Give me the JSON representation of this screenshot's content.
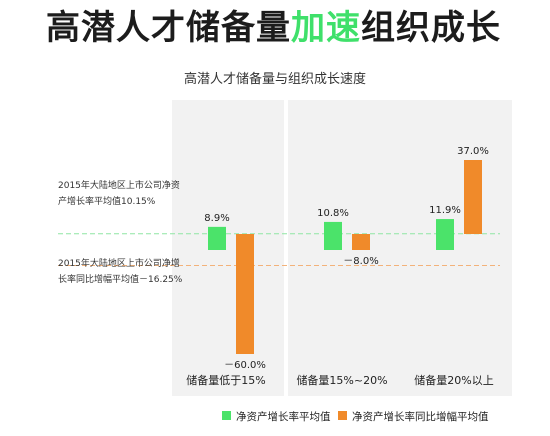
{
  "headline": {
    "part1": "高潜人才储备量",
    "part2": "加速",
    "part3": "组织成长"
  },
  "annotations": {
    "roe": "2015年大陆地区上市公司净资产增长率平均值10.15%",
    "growth": "2015年大陆地区上市公司净增长率同比增幅平均值－16.25%"
  },
  "colors": {
    "green": "#4be36a",
    "orange": "#f08a2a",
    "panel": "#f2f2f2",
    "accent": "#3fe06a"
  },
  "chart_data": {
    "type": "bar",
    "title": "高潜人才储备量与组织成长速度",
    "categories": [
      "储备量低于15%",
      "储备量15%~20%",
      "储备量20%以上"
    ],
    "series": [
      {
        "name": "净资产增长率平均值",
        "values": [
          8.9,
          10.8,
          11.9
        ],
        "labels": [
          "8.9%",
          "10.8%",
          "11.9%"
        ],
        "color": "#4be36a"
      },
      {
        "name": "净资产增长率同比增幅平均值",
        "values": [
          -60.0,
          -8.0,
          37.0
        ],
        "labels": [
          "－60.0%",
          "－8.0%",
          "37.0%"
        ],
        "color": "#f08a2a"
      }
    ],
    "reference_lines": [
      10.15,
      -16.25
    ],
    "ylim": [
      -65,
      42
    ],
    "grid": false,
    "legend_position": "bottom"
  }
}
